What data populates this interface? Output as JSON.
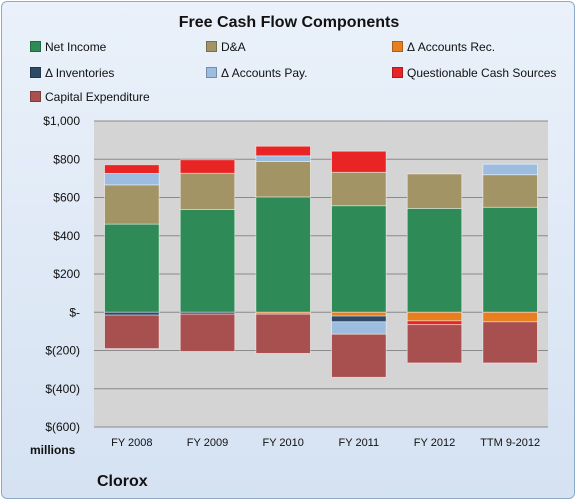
{
  "company": "Clorox",
  "chart_data": {
    "type": "bar",
    "stacked": true,
    "title": "Free Cash Flow Components",
    "ylabel": "millions",
    "xlabel": "",
    "ylim": [
      -600,
      1000
    ],
    "y_ticks": [
      1000,
      800,
      600,
      400,
      200,
      0,
      -200,
      -400,
      -600
    ],
    "y_tick_labels": [
      "$1,000",
      "$800",
      "$600",
      "$400",
      "$200",
      "$-",
      "$(200)",
      "$(400)",
      "$(600)"
    ],
    "grid": true,
    "legend": "top",
    "categories": [
      "FY 2008",
      "FY 2009",
      "FY 2010",
      "FY 2011",
      "FY 2012",
      "TTM 9-2012"
    ],
    "series": [
      {
        "name": "Net Income",
        "color": "#2e8b57",
        "values": [
          461,
          537,
          603,
          557,
          543,
          549
        ]
      },
      {
        "name": "D&A",
        "color": "#a39466",
        "values": [
          205,
          190,
          185,
          175,
          180,
          170
        ]
      },
      {
        "name": "Δ Accounts Rec.",
        "color": "#e87f1e",
        "values": [
          0,
          0,
          -10,
          -20,
          -45,
          -50
        ]
      },
      {
        "name": "Δ Inventories",
        "color": "#2f4a66",
        "values": [
          -15,
          -10,
          0,
          -30,
          0,
          0
        ]
      },
      {
        "name": "Δ Accounts Pay.",
        "color": "#9dbde0",
        "values": [
          60,
          0,
          30,
          -65,
          0,
          55
        ]
      },
      {
        "name": "Questionable Cash Sources",
        "color": "#e82424",
        "values": [
          45,
          70,
          50,
          110,
          -20,
          0
        ]
      },
      {
        "name": "Capital Expenditure",
        "color": "#a84f4f",
        "values": [
          -175,
          -195,
          -205,
          -225,
          -200,
          -215
        ]
      }
    ]
  }
}
